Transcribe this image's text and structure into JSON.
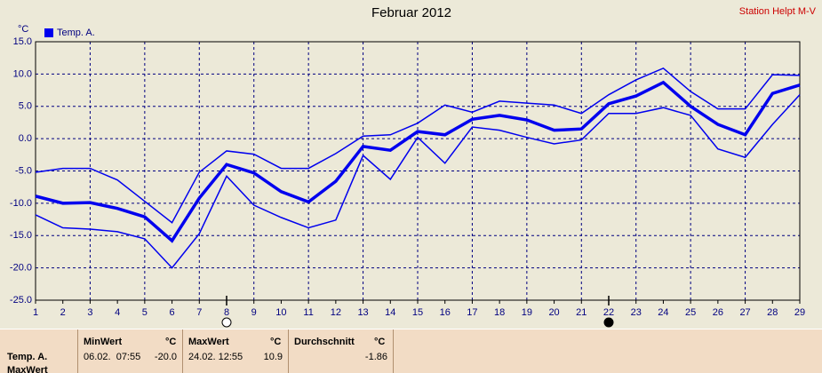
{
  "chart_data": {
    "type": "line",
    "title": "Februar 2012",
    "station": "Station Helpt M-V",
    "y_unit": "°C",
    "x": [
      1,
      2,
      3,
      4,
      5,
      6,
      7,
      8,
      9,
      10,
      11,
      12,
      13,
      14,
      15,
      16,
      17,
      18,
      19,
      20,
      21,
      22,
      23,
      24,
      25,
      26,
      27,
      28,
      29
    ],
    "xlim": [
      1,
      29
    ],
    "xticks": [
      1,
      2,
      3,
      4,
      5,
      6,
      7,
      8,
      9,
      10,
      11,
      12,
      13,
      14,
      15,
      16,
      17,
      18,
      19,
      20,
      21,
      22,
      23,
      24,
      25,
      26,
      27,
      28,
      29
    ],
    "ylim": [
      -25,
      15
    ],
    "yticks": [
      {
        "value": -25,
        "label": "-25.0"
      },
      {
        "value": -20,
        "label": "-20.0"
      },
      {
        "value": -15,
        "label": "-15.0"
      },
      {
        "value": -10,
        "label": "-10.0"
      },
      {
        "value": -5,
        "label": "-5.0"
      },
      {
        "value": 0,
        "label": "0.0"
      },
      {
        "value": 5,
        "label": "5.0"
      },
      {
        "value": 10,
        "label": "10.0"
      },
      {
        "value": 15,
        "label": "15.0"
      }
    ],
    "grid": true,
    "series": [
      {
        "color": "#0000ee",
        "width": 1.5,
        "values": [
          -5.2,
          -4.6,
          -4.6,
          -6.4,
          -9.7,
          -13.0,
          -5.2,
          -1.9,
          -2.4,
          -4.6,
          -4.6,
          -2.3,
          0.4,
          0.6,
          2.4,
          5.2,
          4.1,
          5.8,
          5.5,
          5.2,
          3.9,
          6.8,
          9.1,
          10.9,
          7.3,
          4.6,
          4.6,
          9.9,
          9.8
        ]
      },
      {
        "name": "Temp. A.",
        "color": "#0000ee",
        "width": 3.5,
        "values": [
          -8.9,
          -10.0,
          -9.9,
          -10.8,
          -12.1,
          -15.8,
          -9.2,
          -4.0,
          -5.3,
          -8.2,
          -9.8,
          -6.6,
          -1.2,
          -1.8,
          1.1,
          0.6,
          3.0,
          3.6,
          2.9,
          1.3,
          1.5,
          5.4,
          6.6,
          8.7,
          5.0,
          2.2,
          0.6,
          7.0,
          8.3
        ]
      },
      {
        "color": "#0000ee",
        "width": 1.5,
        "values": [
          -11.8,
          -13.8,
          -14.0,
          -14.4,
          -15.5,
          -20.0,
          -14.7,
          -5.8,
          -10.3,
          -12.2,
          -13.8,
          -12.6,
          -2.6,
          -6.3,
          0.2,
          -3.8,
          1.8,
          1.3,
          0.2,
          -0.8,
          -0.2,
          3.9,
          3.9,
          4.8,
          3.6,
          -1.6,
          -2.9,
          2.2,
          6.8
        ]
      }
    ],
    "moon_markers": [
      {
        "x": 8,
        "filled": false
      },
      {
        "x": 22,
        "filled": true
      }
    ]
  },
  "stats": {
    "row_labels": [
      "Temp. A.",
      "MaxWert"
    ],
    "columns": [
      {
        "header": "MinWert",
        "unit": "°C",
        "time": "06.02.  07:55",
        "value": "-20.0"
      },
      {
        "header": "MaxWert",
        "unit": "°C",
        "time": "24.02. 12:55",
        "value": "10.9"
      },
      {
        "header": "Durchschnitt",
        "unit": "°C",
        "value": "-1.86"
      }
    ]
  }
}
